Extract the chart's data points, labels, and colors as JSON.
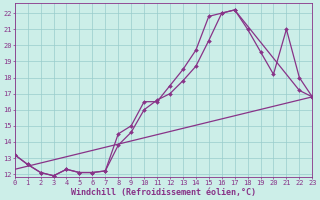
{
  "xlabel": "Windchill (Refroidissement éolien,°C)",
  "bg_color": "#cceee8",
  "grid_color": "#99cccc",
  "line_color": "#883388",
  "xlim": [
    0,
    23
  ],
  "ylim": [
    11.8,
    22.6
  ],
  "xticks": [
    0,
    1,
    2,
    3,
    4,
    5,
    6,
    7,
    8,
    9,
    10,
    11,
    12,
    13,
    14,
    15,
    16,
    17,
    18,
    19,
    20,
    21,
    22,
    23
  ],
  "yticks": [
    12,
    13,
    14,
    15,
    16,
    17,
    18,
    19,
    20,
    21,
    22
  ],
  "line1_x": [
    0,
    1,
    2,
    3,
    4,
    5,
    6,
    7,
    8,
    9,
    10,
    11,
    12,
    13,
    14,
    15,
    16,
    17,
    22,
    23
  ],
  "line1_y": [
    13.2,
    12.6,
    12.1,
    11.9,
    12.3,
    12.1,
    12.1,
    12.2,
    13.8,
    14.6,
    16.0,
    16.6,
    17.0,
    17.8,
    18.7,
    20.3,
    22.0,
    22.2,
    17.2,
    16.8
  ],
  "line2_x": [
    0,
    1,
    2,
    3,
    4,
    5,
    6,
    7,
    8,
    9,
    10,
    11,
    12,
    13,
    14,
    15,
    16,
    17,
    18,
    19,
    20,
    21,
    22,
    23
  ],
  "line2_y": [
    13.2,
    12.6,
    12.1,
    11.9,
    12.3,
    12.1,
    12.1,
    12.2,
    14.5,
    15.0,
    16.5,
    16.5,
    17.5,
    18.5,
    19.7,
    21.8,
    22.0,
    22.2,
    21.0,
    19.6,
    18.2,
    21.0,
    18.0,
    16.8
  ],
  "line3_x": [
    0,
    23
  ],
  "line3_y": [
    12.3,
    16.8
  ],
  "marker_size": 2.0,
  "line_width": 0.9,
  "tick_fontsize": 5,
  "xlabel_fontsize": 6
}
